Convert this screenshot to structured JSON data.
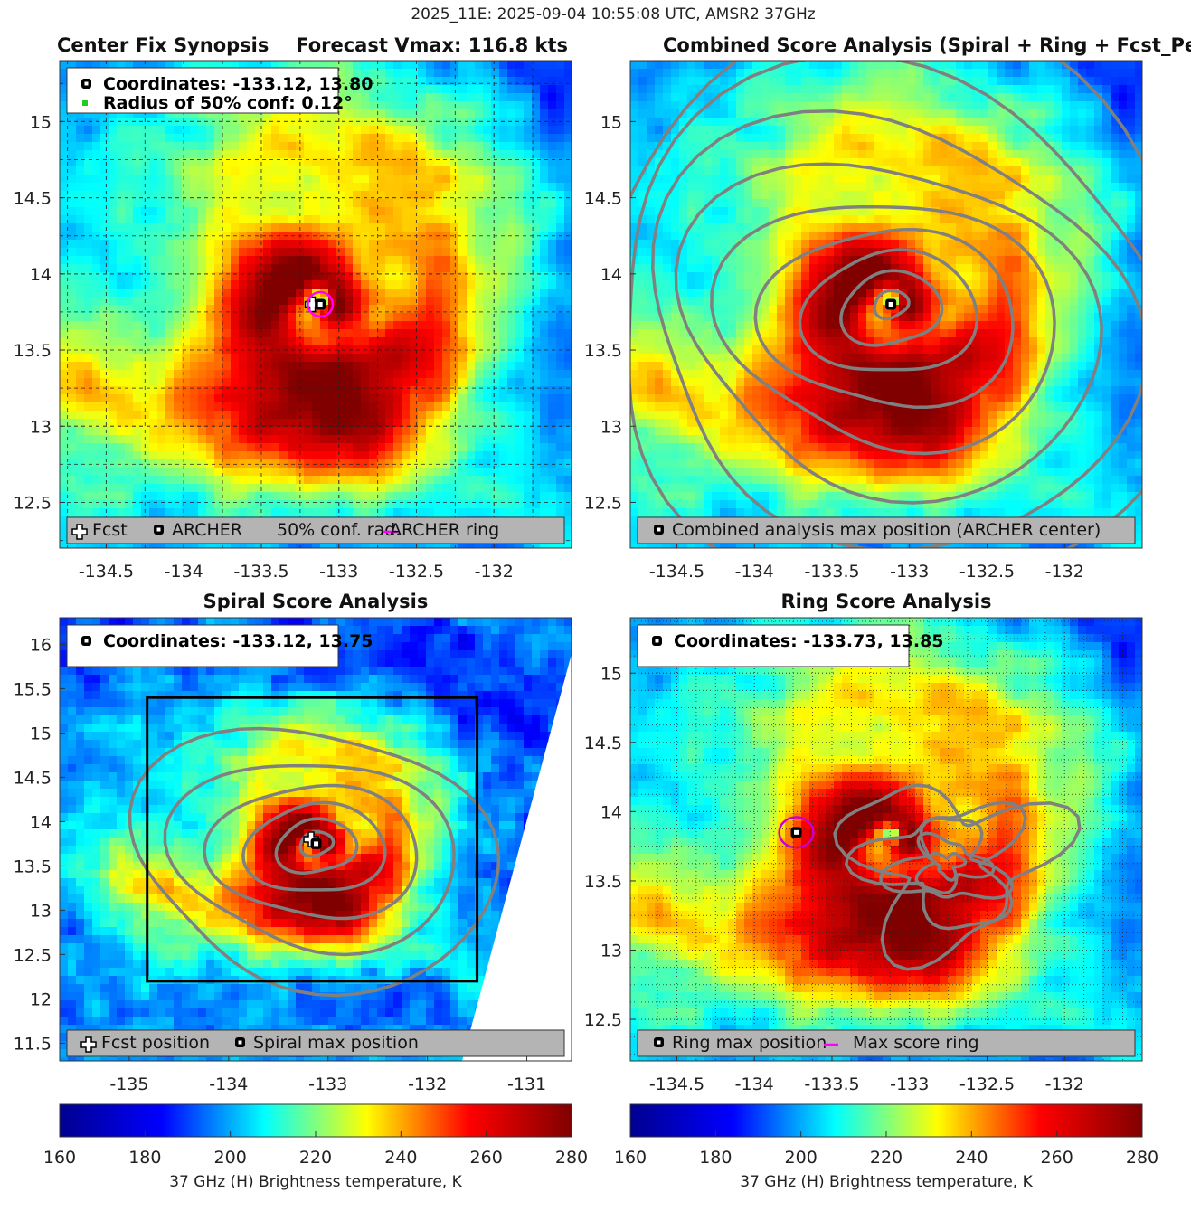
{
  "suptitle": "2025_11E: 2025-09-04 10:55:08 UTC, AMSR2 37GHz",
  "colormap": [
    "#00008f",
    "#0000ff",
    "#00ffff",
    "#ffff00",
    "#ff0000",
    "#800000"
  ],
  "chart_data": [
    {
      "id": "p1",
      "type": "heatmap",
      "title": "Center Fix Synopsis",
      "title_right": "Forecast Vmax: 116.8 kts",
      "xlim": [
        -134.8,
        -131.5
      ],
      "ylim": [
        12.2,
        15.4
      ],
      "xticks": [
        -134.5,
        -134,
        -133.5,
        -133,
        -132.5,
        -132
      ],
      "xtick_labels": [
        "-134.5",
        "-134",
        "-133.5",
        "-133",
        "-132.5",
        "-132"
      ],
      "yticks": [
        12.5,
        13,
        13.5,
        14,
        14.5,
        15
      ],
      "ytick_labels": [
        "12.5",
        "13",
        "13.5",
        "14",
        "14.5",
        "15"
      ],
      "grid": "dashed",
      "center": [
        -133.12,
        13.8
      ],
      "info_lines": [
        "Coordinates: -133.12, 13.80",
        "Radius of 50% conf: 0.12°"
      ],
      "legend": [
        "Fcst",
        "ARCHER",
        "50% conf. rad.",
        "ARCHER ring"
      ],
      "markers": [
        {
          "kind": "fcst",
          "x": -133.17,
          "y": 13.8
        },
        {
          "kind": "archer",
          "x": -133.12,
          "y": 13.8
        },
        {
          "kind": "ring",
          "x": -133.12,
          "y": 13.8,
          "r": 0.08,
          "color": "#ff00ff"
        }
      ]
    },
    {
      "id": "p2",
      "type": "heatmap",
      "title": "Combined Score Analysis (Spiral + Ring + Fcst_Pe",
      "xlim": [
        -134.8,
        -131.5
      ],
      "ylim": [
        12.2,
        15.4
      ],
      "xticks": [
        -134.5,
        -134,
        -133.5,
        -133,
        -132.5,
        -132
      ],
      "xtick_labels": [
        "-134.5",
        "-134",
        "-133.5",
        "-133",
        "-132.5",
        "-132"
      ],
      "yticks": [
        12.5,
        13,
        13.5,
        14,
        14.5,
        15
      ],
      "ytick_labels": [
        "12.5",
        "13",
        "13.5",
        "14",
        "14.5",
        "15"
      ],
      "grid": "none",
      "center": [
        -133.12,
        13.8
      ],
      "legend": [
        "Combined analysis max position (ARCHER center)"
      ],
      "contours": {
        "kind": "rings",
        "radii": [
          0.1,
          0.28,
          0.48,
          0.7,
          0.95,
          1.22,
          1.5,
          1.8,
          2.1
        ]
      },
      "markers": [
        {
          "kind": "archer",
          "x": -133.12,
          "y": 13.8
        }
      ]
    },
    {
      "id": "p3",
      "type": "heatmap",
      "title": "Spiral Score Analysis",
      "xlim": [
        -135.7,
        -130.55
      ],
      "ylim": [
        11.3,
        16.3
      ],
      "xticks": [
        -135,
        -134,
        -133,
        -132,
        -131
      ],
      "xtick_labels": [
        "-135",
        "-134",
        "-133",
        "-132",
        "-131"
      ],
      "yticks": [
        11.5,
        12,
        12.5,
        13,
        13.5,
        14,
        14.5,
        15,
        15.5,
        16
      ],
      "ytick_labels": [
        "11.5",
        "12",
        "12.5",
        "13",
        "13.5",
        "14",
        "14.5",
        "15",
        "15.5",
        "16"
      ],
      "grid": "none",
      "center": [
        -133.12,
        13.75
      ],
      "info_lines": [
        "Coordinates: -133.12, 13.75"
      ],
      "legend": [
        "Fcst position",
        "Spiral max position"
      ],
      "contours": {
        "kind": "rings",
        "radii": [
          0.15,
          0.35,
          0.6,
          0.9,
          1.25,
          1.65
        ]
      },
      "box": {
        "x": [
          -134.82,
          -131.5
        ],
        "y": [
          12.2,
          15.4
        ]
      },
      "markers": [
        {
          "kind": "fcst",
          "x": -133.17,
          "y": 13.8
        },
        {
          "kind": "archer",
          "x": -133.12,
          "y": 13.75
        }
      ]
    },
    {
      "id": "p4",
      "type": "heatmap",
      "title": "Ring Score Analysis",
      "xlim": [
        -134.8,
        -131.5
      ],
      "ylim": [
        12.2,
        15.4
      ],
      "xticks": [
        -134.5,
        -134,
        -133.5,
        -133,
        -132.5,
        -132
      ],
      "xtick_labels": [
        "-134.5",
        "-134",
        "-133.5",
        "-133",
        "-132.5",
        "-132"
      ],
      "yticks": [
        12.5,
        13,
        13.5,
        14,
        14.5,
        15
      ],
      "ytick_labels": [
        "12.5",
        "13",
        "13.5",
        "14",
        "14.5",
        "15"
      ],
      "grid": "dotted",
      "center": [
        -133.12,
        13.8
      ],
      "info_lines": [
        "Coordinates: -133.73, 13.85"
      ],
      "legend": [
        "Ring max position",
        "Max score ring"
      ],
      "contours": {
        "kind": "blob",
        "cx": -132.75,
        "cy": 13.62,
        "radii": [
          0.08,
          0.18,
          0.28,
          0.4,
          0.55
        ]
      },
      "markers": [
        {
          "kind": "archer",
          "x": -133.73,
          "y": 13.85
        },
        {
          "kind": "ring",
          "x": -133.73,
          "y": 13.85,
          "r": 0.11,
          "color": "#cc00cc"
        }
      ]
    }
  ],
  "colorbars": [
    {
      "range": [
        160,
        280
      ],
      "ticks": [
        "160",
        "180",
        "200",
        "220",
        "240",
        "260",
        "280"
      ],
      "label": "37 GHz (H) Brightness temperature, K"
    },
    {
      "range": [
        160,
        280
      ],
      "ticks": [
        "160",
        "180",
        "200",
        "220",
        "240",
        "260",
        "280"
      ],
      "label": "37 GHz (H) Brightness temperature, K"
    }
  ]
}
